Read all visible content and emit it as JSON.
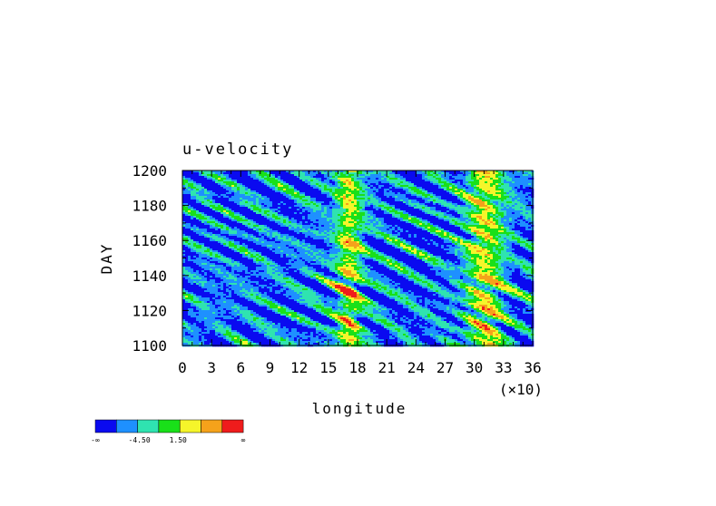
{
  "chart_data": {
    "type": "heatmap",
    "title": "u-velocity",
    "xlabel": "longitude",
    "ylabel": "DAY",
    "x_scale_note": "(×10)",
    "xlim": [
      0,
      36
    ],
    "ylim": [
      1100,
      1200
    ],
    "x_ticks": [
      "0",
      "3",
      "6",
      "9",
      "12",
      "15",
      "18",
      "21",
      "24",
      "27",
      "30",
      "33",
      "36"
    ],
    "y_ticks": [
      "1100",
      "1120",
      "1140",
      "1160",
      "1180",
      "1200"
    ],
    "colorbar": {
      "colors": [
        "#0a0af0",
        "#1e90ff",
        "#2fe3b0",
        "#19e019",
        "#f5f52a",
        "#f5a21b",
        "#ef1c1c"
      ],
      "labels": [
        "-∞",
        "-4.50",
        "1.50",
        "∞"
      ]
    },
    "features": {
      "red_lon_centers": [
        17,
        31
      ],
      "red_lon_widths": [
        1.4,
        2.0
      ],
      "background": "mostly blue (negative) with yellow/red streaks near longitude 150-180 and 290-330"
    }
  }
}
